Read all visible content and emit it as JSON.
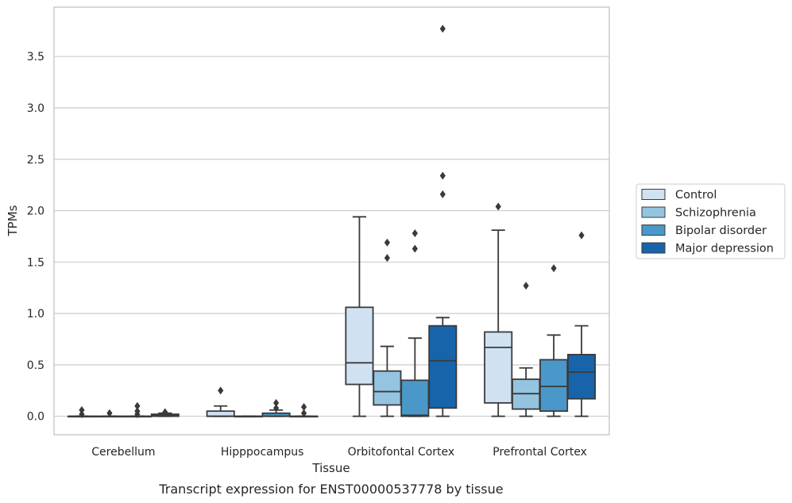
{
  "caption": "Transcript expression for ENST00000537778 by tissue",
  "chart_data": {
    "type": "box",
    "title": "",
    "xlabel": "Tissue",
    "ylabel": "TPMs",
    "ylim": [
      -0.18,
      3.98
    ],
    "yticks": [
      "0.0",
      "0.5",
      "1.0",
      "1.5",
      "2.0",
      "2.5",
      "3.0",
      "3.5"
    ],
    "grid": "horizontal",
    "legend_position": "right",
    "categories": [
      "Cerebellum",
      "Hipppocampus",
      "Orbitofontal Cortex",
      "Prefrontal Cortex"
    ],
    "series": [
      {
        "name": "Control",
        "color": "#d0e1f2",
        "boxes": [
          {
            "q1": 0.0,
            "median": 0.0,
            "q3": 0.0,
            "whislo": 0.0,
            "whishi": 0.0,
            "fliers": [
              0.02,
              0.06
            ]
          },
          {
            "q1": 0.0,
            "median": 0.0,
            "q3": 0.05,
            "whislo": 0.0,
            "whishi": 0.1,
            "fliers": [
              0.25
            ]
          },
          {
            "q1": 0.31,
            "median": 0.52,
            "q3": 1.06,
            "whislo": 0.0,
            "whishi": 1.94,
            "fliers": []
          },
          {
            "q1": 0.13,
            "median": 0.67,
            "q3": 0.82,
            "whislo": 0.0,
            "whishi": 1.81,
            "fliers": [
              2.04
            ]
          }
        ]
      },
      {
        "name": "Schizophrenia",
        "color": "#94c4df",
        "boxes": [
          {
            "q1": 0.0,
            "median": 0.0,
            "q3": 0.0,
            "whislo": 0.0,
            "whishi": 0.0,
            "fliers": [
              0.03
            ]
          },
          {
            "q1": 0.0,
            "median": 0.0,
            "q3": 0.0,
            "whislo": 0.0,
            "whishi": 0.0,
            "fliers": []
          },
          {
            "q1": 0.11,
            "median": 0.24,
            "q3": 0.44,
            "whislo": 0.0,
            "whishi": 0.68,
            "fliers": [
              1.54,
              1.69
            ]
          },
          {
            "q1": 0.07,
            "median": 0.22,
            "q3": 0.36,
            "whislo": 0.0,
            "whishi": 0.47,
            "fliers": [
              1.27
            ]
          }
        ]
      },
      {
        "name": "Bipolar disorder",
        "color": "#4a98c9",
        "boxes": [
          {
            "q1": 0.0,
            "median": 0.0,
            "q3": 0.0,
            "whislo": 0.0,
            "whishi": 0.0,
            "fliers": [
              0.02,
              0.05,
              0.1
            ]
          },
          {
            "q1": 0.0,
            "median": 0.0,
            "q3": 0.03,
            "whislo": 0.0,
            "whishi": 0.06,
            "fliers": [
              0.08,
              0.13
            ]
          },
          {
            "q1": 0.0,
            "median": 0.01,
            "q3": 0.35,
            "whislo": 0.0,
            "whishi": 0.76,
            "fliers": [
              1.63,
              1.78
            ]
          },
          {
            "q1": 0.05,
            "median": 0.29,
            "q3": 0.55,
            "whislo": 0.0,
            "whishi": 0.79,
            "fliers": [
              1.44
            ]
          }
        ]
      },
      {
        "name": "Major depression",
        "color": "#1764ab",
        "boxes": [
          {
            "q1": 0.0,
            "median": 0.01,
            "q3": 0.02,
            "whislo": 0.0,
            "whishi": 0.03,
            "fliers": [
              0.04
            ]
          },
          {
            "q1": 0.0,
            "median": 0.0,
            "q3": 0.0,
            "whislo": 0.0,
            "whishi": 0.0,
            "fliers": [
              0.03,
              0.09
            ]
          },
          {
            "q1": 0.08,
            "median": 0.54,
            "q3": 0.88,
            "whislo": 0.0,
            "whishi": 0.96,
            "fliers": [
              2.16,
              2.34,
              3.77
            ]
          },
          {
            "q1": 0.17,
            "median": 0.43,
            "q3": 0.6,
            "whislo": 0.0,
            "whishi": 0.88,
            "fliers": [
              1.76
            ]
          }
        ]
      }
    ]
  }
}
